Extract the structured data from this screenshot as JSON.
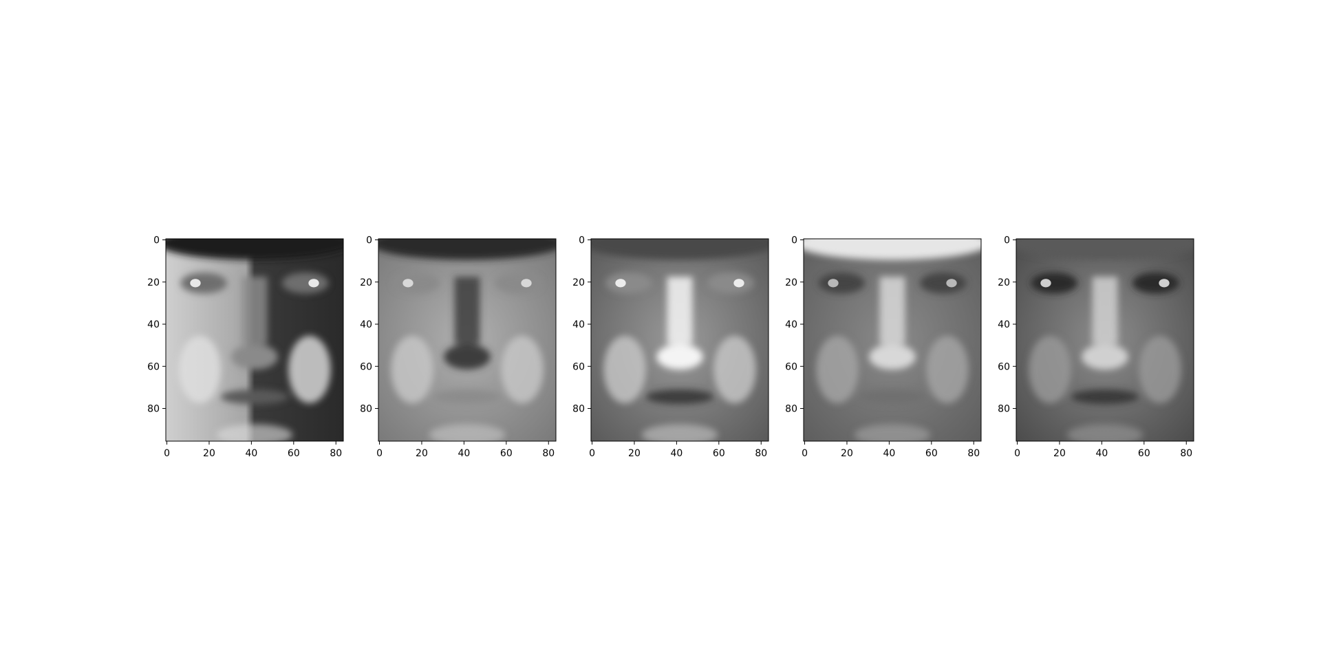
{
  "figure": {
    "panels": [
      {
        "id": "face-1",
        "image_shape": [
          96,
          84
        ],
        "x_ticks": [
          "0",
          "20",
          "40",
          "60",
          "80"
        ],
        "y_ticks": [
          "0",
          "20",
          "40",
          "60",
          "80"
        ],
        "style": "split-lit"
      },
      {
        "id": "face-2",
        "image_shape": [
          96,
          84
        ],
        "x_ticks": [
          "0",
          "20",
          "40",
          "60",
          "80"
        ],
        "y_ticks": [
          "0",
          "20",
          "40",
          "60",
          "80"
        ],
        "style": "contour"
      },
      {
        "id": "face-3",
        "image_shape": [
          96,
          84
        ],
        "x_ticks": [
          "0",
          "20",
          "40",
          "60",
          "80"
        ],
        "y_ticks": [
          "0",
          "20",
          "40",
          "60",
          "80"
        ],
        "style": "bright-nose"
      },
      {
        "id": "face-4",
        "image_shape": [
          96,
          84
        ],
        "x_ticks": [
          "0",
          "20",
          "40",
          "60",
          "80"
        ],
        "y_ticks": [
          "0",
          "20",
          "40",
          "60",
          "80"
        ],
        "style": "bright-forehead"
      },
      {
        "id": "face-5",
        "image_shape": [
          96,
          84
        ],
        "x_ticks": [
          "0",
          "20",
          "40",
          "60",
          "80"
        ],
        "y_ticks": [
          "0",
          "20",
          "40",
          "60",
          "80"
        ],
        "style": "dark-shaded"
      }
    ],
    "colormap": "gray",
    "axis_color": "#000000"
  }
}
